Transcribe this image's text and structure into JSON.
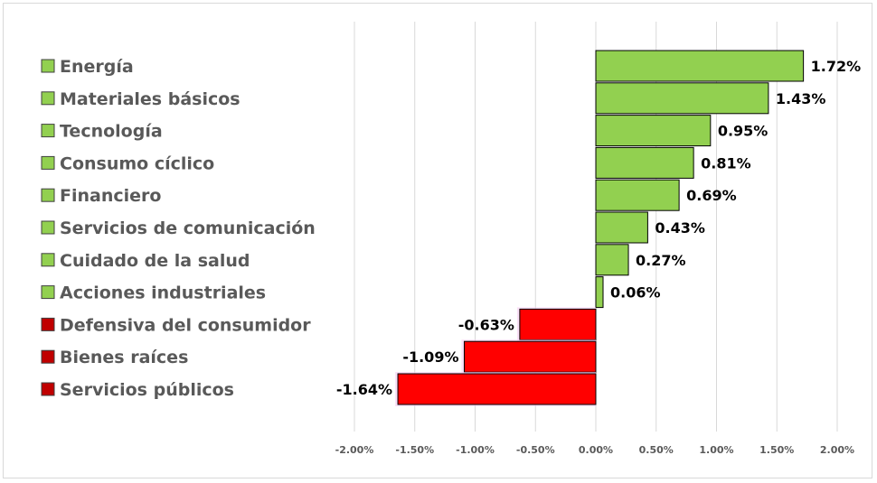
{
  "chart_data": {
    "type": "bar",
    "orientation": "horizontal",
    "categories": [
      "Energía",
      "Materiales básicos",
      "Tecnología",
      "Consumo cíclico",
      "Financiero",
      "Servicios de comunicación",
      "Cuidado de la salud",
      "Acciones industriales",
      "Defensiva del consumidor",
      "Bienes raíces",
      "Servicios públicos"
    ],
    "values": [
      1.72,
      1.43,
      0.95,
      0.81,
      0.69,
      0.43,
      0.27,
      0.06,
      -0.63,
      -1.09,
      -1.64
    ],
    "data_labels": [
      "1.72%",
      "1.43%",
      "0.95%",
      "0.81%",
      "0.69%",
      "0.43%",
      "0.27%",
      "0.06%",
      "-0.63%",
      "-1.09%",
      "-1.64%"
    ],
    "xlim": [
      -2.0,
      2.0
    ],
    "xticks": [
      -2.0,
      -1.5,
      -1.0,
      -0.5,
      0.0,
      0.5,
      1.0,
      1.5,
      2.0
    ],
    "xtick_labels": [
      "-2.00%",
      "-1.50%",
      "-1.00%",
      "-0.50%",
      "0.00%",
      "0.50%",
      "1.00%",
      "1.50%",
      "2.00%"
    ],
    "grid": "vertical",
    "legend_placement": "left",
    "colors": {
      "positive": "#92d050",
      "negative": "#ff0000",
      "negative_legend": "#c00000",
      "bar_border": "#000000",
      "grid": "#d9d9d9",
      "label_text": "#595959"
    }
  }
}
